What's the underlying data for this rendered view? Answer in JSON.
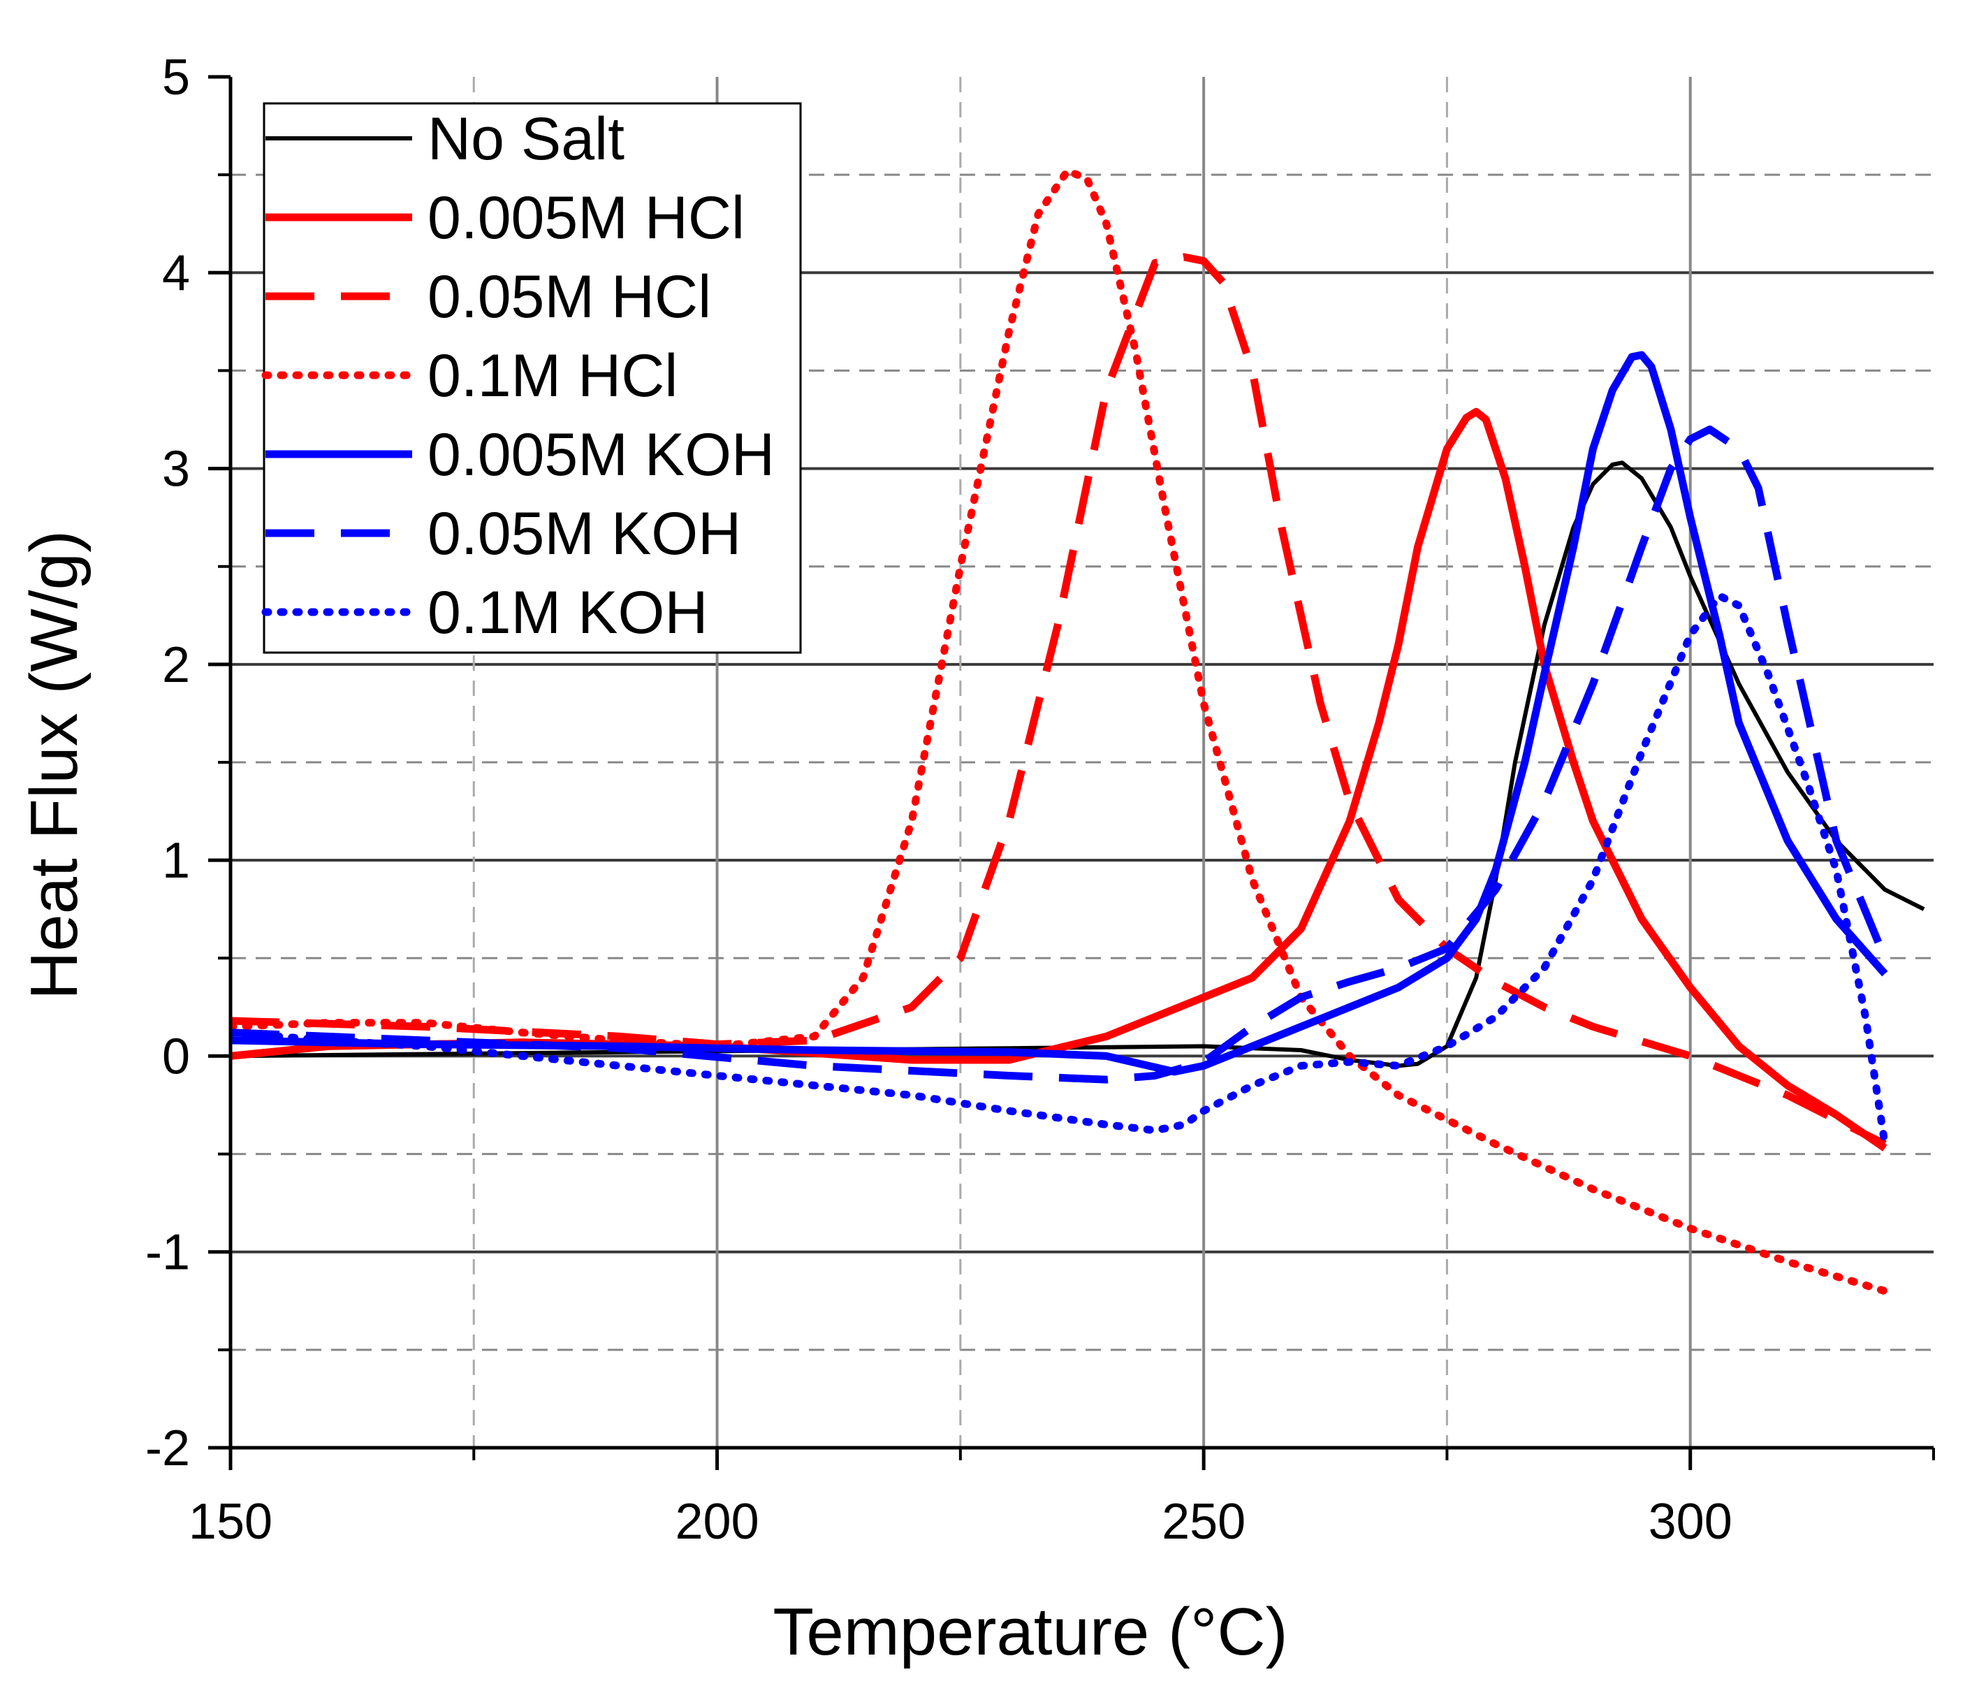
{
  "chart_data": {
    "type": "line",
    "title": "",
    "xlabel": "Temperature (°C)",
    "ylabel": "Heat Flux (W/g)",
    "xlim": [
      150,
      325
    ],
    "ylim": [
      -2,
      5
    ],
    "x_ticks": [
      150,
      200,
      250,
      300
    ],
    "x_tick_labels": [
      "150",
      "200",
      "250",
      "300"
    ],
    "x_minor_ticks": [
      175,
      225,
      275
    ],
    "y_ticks": [
      -2,
      -1,
      0,
      1,
      2,
      3,
      4,
      5
    ],
    "y_tick_labels": [
      "-2",
      "-1",
      "0",
      "1",
      "2",
      "3",
      "4",
      "5"
    ],
    "y_minor_ticks": [
      -1.5,
      -0.5,
      0.5,
      1.5,
      2.5,
      3.5,
      4.5
    ],
    "grid": true,
    "legend_position": "top-left",
    "series": [
      {
        "name": "No Salt",
        "color": "#000000",
        "style": "solid",
        "width": "thin",
        "x": [
          150,
          170,
          190,
          210,
          230,
          250,
          260,
          265,
          270,
          272,
          275,
          278,
          280,
          282,
          285,
          288,
          290,
          292,
          293,
          295,
          298,
          300,
          305,
          310,
          315,
          320,
          324
        ],
        "y": [
          0.0,
          0.01,
          0.02,
          0.03,
          0.04,
          0.05,
          0.03,
          -0.02,
          -0.05,
          -0.04,
          0.05,
          0.4,
          0.9,
          1.5,
          2.2,
          2.7,
          2.92,
          3.02,
          3.03,
          2.95,
          2.7,
          2.45,
          1.9,
          1.45,
          1.1,
          0.85,
          0.75
        ]
      },
      {
        "name": "0.005M HCl",
        "color": "#ff0000",
        "style": "solid",
        "width": "thick",
        "x": [
          150,
          160,
          180,
          200,
          220,
          230,
          240,
          245,
          250,
          255,
          260,
          265,
          268,
          270,
          272,
          275,
          277,
          278,
          279,
          281,
          283,
          285,
          288,
          290,
          295,
          300,
          305,
          310,
          315,
          320
        ],
        "y": [
          0.0,
          0.05,
          0.07,
          0.05,
          -0.02,
          -0.02,
          0.1,
          0.2,
          0.3,
          0.4,
          0.65,
          1.2,
          1.7,
          2.1,
          2.6,
          3.1,
          3.26,
          3.29,
          3.25,
          2.95,
          2.5,
          2.0,
          1.5,
          1.2,
          0.7,
          0.35,
          0.05,
          -0.15,
          -0.3,
          -0.47
        ]
      },
      {
        "name": "0.05M HCl",
        "color": "#ff0000",
        "style": "dashed",
        "width": "thick",
        "x": [
          150,
          170,
          190,
          200,
          210,
          220,
          225,
          230,
          235,
          240,
          245,
          248,
          250,
          252,
          255,
          258,
          262,
          265,
          270,
          275,
          280,
          285,
          290,
          300,
          310,
          320
        ],
        "y": [
          0.18,
          0.15,
          0.1,
          0.06,
          0.08,
          0.25,
          0.5,
          1.2,
          2.2,
          3.4,
          4.05,
          4.08,
          4.06,
          3.95,
          3.5,
          2.7,
          1.8,
          1.3,
          0.8,
          0.55,
          0.38,
          0.25,
          0.15,
          0.0,
          -0.2,
          -0.45
        ]
      },
      {
        "name": "0.1M HCl",
        "color": "#ff0000",
        "style": "dotted",
        "width": "thick",
        "x": [
          150,
          160,
          170,
          180,
          190,
          200,
          210,
          215,
          220,
          225,
          230,
          233,
          236,
          238,
          240,
          243,
          246,
          250,
          255,
          260,
          265,
          270,
          280,
          290,
          300,
          310,
          320
        ],
        "y": [
          0.15,
          0.17,
          0.17,
          0.12,
          0.08,
          0.05,
          0.1,
          0.4,
          1.2,
          2.5,
          3.7,
          4.3,
          4.52,
          4.48,
          4.25,
          3.6,
          2.8,
          1.8,
          0.9,
          0.3,
          0.0,
          -0.2,
          -0.45,
          -0.68,
          -0.88,
          -1.05,
          -1.2
        ]
      },
      {
        "name": "0.005M KOH",
        "color": "#0000ff",
        "style": "solid",
        "width": "thick",
        "x": [
          150,
          170,
          190,
          210,
          230,
          240,
          247,
          250,
          255,
          260,
          265,
          270,
          275,
          278,
          280,
          283,
          285,
          288,
          290,
          292,
          294,
          295,
          296,
          298,
          300,
          303,
          305,
          310,
          315,
          320
        ],
        "y": [
          0.08,
          0.06,
          0.05,
          0.03,
          0.02,
          0.0,
          -0.08,
          -0.05,
          0.05,
          0.15,
          0.25,
          0.35,
          0.5,
          0.7,
          0.95,
          1.5,
          1.95,
          2.6,
          3.1,
          3.4,
          3.57,
          3.58,
          3.52,
          3.2,
          2.75,
          2.15,
          1.7,
          1.1,
          0.7,
          0.42
        ]
      },
      {
        "name": "0.05M KOH",
        "color": "#0000ff",
        "style": "dashed",
        "width": "thick",
        "x": [
          150,
          170,
          190,
          210,
          230,
          240,
          245,
          250,
          255,
          260,
          265,
          270,
          275,
          280,
          285,
          290,
          295,
          298,
          300,
          302,
          305,
          307,
          310,
          315,
          320
        ],
        "y": [
          0.12,
          0.08,
          0.04,
          -0.05,
          -0.1,
          -0.12,
          -0.1,
          -0.03,
          0.15,
          0.3,
          0.38,
          0.45,
          0.55,
          0.85,
          1.3,
          1.9,
          2.6,
          3.0,
          3.15,
          3.2,
          3.1,
          2.9,
          2.2,
          1.1,
          0.5
        ]
      },
      {
        "name": "0.1M KOH",
        "color": "#0000ff",
        "style": "dotted",
        "width": "thick",
        "x": [
          150,
          160,
          170,
          180,
          190,
          200,
          210,
          220,
          230,
          240,
          245,
          248,
          250,
          255,
          260,
          265,
          270,
          275,
          280,
          285,
          290,
          295,
          300,
          303,
          305,
          308,
          312,
          315,
          318,
          320
        ],
        "y": [
          0.12,
          0.08,
          0.05,
          0.0,
          -0.05,
          -0.1,
          -0.15,
          -0.2,
          -0.28,
          -0.35,
          -0.38,
          -0.35,
          -0.28,
          -0.15,
          -0.05,
          -0.03,
          -0.05,
          0.05,
          0.2,
          0.45,
          0.9,
          1.55,
          2.15,
          2.35,
          2.3,
          1.95,
          1.4,
          0.95,
          0.2,
          -0.45
        ]
      }
    ]
  }
}
